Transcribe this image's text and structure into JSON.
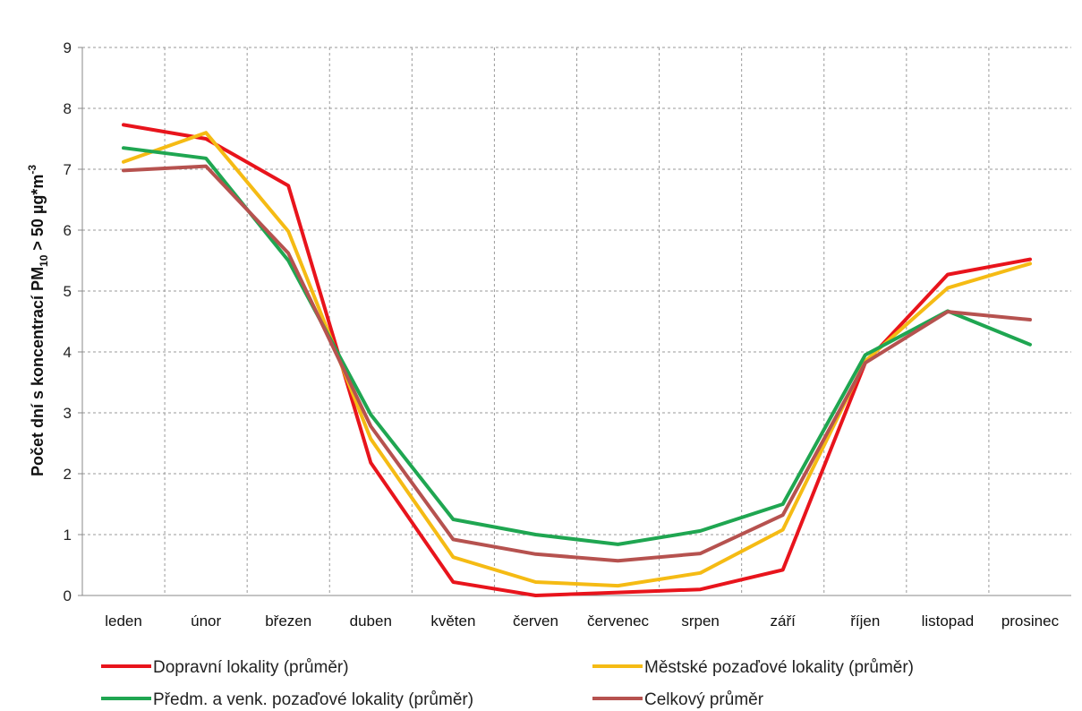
{
  "chart_data": {
    "type": "line",
    "title": "",
    "xlabel": "",
    "ylabel_parts": {
      "main": "Počet dní s koncentrací PM",
      "sub": "10",
      "mid": " > 50 µg*m",
      "sup": "-3"
    },
    "ylim": [
      0,
      9
    ],
    "yticks": [
      "0",
      "1",
      "2",
      "3",
      "4",
      "5",
      "6",
      "7",
      "8",
      "9"
    ],
    "grid": true,
    "legend_position": "bottom",
    "categories": [
      "leden",
      "únor",
      "březen",
      "duben",
      "květen",
      "červen",
      "červenec",
      "srpen",
      "září",
      "říjen",
      "listopad",
      "prosinec"
    ],
    "series": [
      {
        "name": "Dopravní lokality (průměr)",
        "color": "#e8141c",
        "values": [
          7.73,
          7.5,
          6.73,
          2.18,
          0.22,
          0.0,
          0.05,
          0.1,
          0.42,
          3.82,
          5.27,
          5.52
        ]
      },
      {
        "name": "Městské pozaďové lokality (průměr)",
        "color": "#f5bb14",
        "values": [
          7.12,
          7.6,
          5.98,
          2.57,
          0.63,
          0.22,
          0.16,
          0.37,
          1.08,
          3.85,
          5.05,
          5.45
        ]
      },
      {
        "name": "Předm. a venk. pozaďové lokality (průměr)",
        "color": "#1fa651",
        "values": [
          7.35,
          7.18,
          5.5,
          2.97,
          1.25,
          1.0,
          0.84,
          1.06,
          1.5,
          3.95,
          4.67,
          4.12
        ]
      },
      {
        "name": "Celkový průměr",
        "color": "#b6524f",
        "values": [
          6.98,
          7.05,
          5.62,
          2.78,
          0.92,
          0.68,
          0.57,
          0.69,
          1.32,
          3.82,
          4.66,
          4.53
        ]
      }
    ]
  }
}
